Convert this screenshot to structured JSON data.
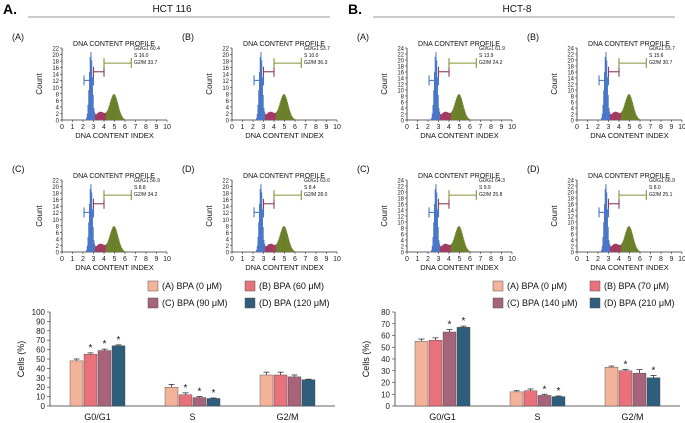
{
  "panels": [
    {
      "letter": "A.",
      "title": "HCT 116",
      "histograms": [
        {
          "sub": "(A)",
          "title": "DNA CONTENT PROFILE",
          "stats": [
            "G0/G1 60.4",
            "S 16.0",
            "G2/M 33.7"
          ]
        },
        {
          "sub": "(B)",
          "title": "DNA CONTENT PROFILE",
          "stats": [
            "G0/G1 53.7",
            "S 10.0",
            "G2/M 36.3"
          ]
        },
        {
          "sub": "(C)",
          "title": "DNA CONTENT PROFILE",
          "stats": [
            "G0/G1 56.9",
            "S 8.8",
            "G2/M 34.2"
          ]
        },
        {
          "sub": "(D)",
          "title": "DNA CONTENT PROFILE",
          "stats": [
            "G0/G1 63.6",
            "S 8.4",
            "G2/M 28.0"
          ]
        }
      ],
      "hist_ylabel": "Count",
      "hist_xlabel": "DNA CONTENT INDEX",
      "hist_yticks": [
        "0",
        "2",
        "4",
        "6",
        "8",
        "10",
        "12",
        "14",
        "16",
        "18",
        "20",
        "22"
      ],
      "hist_xticks": [
        "0",
        "1",
        "2",
        "3",
        "4",
        "5",
        "6",
        "7",
        "8",
        "9",
        "10"
      ],
      "legend": [
        "(A) BPA (0 μM)",
        "(B) BPA (60 μM)",
        "(C) BPA (90 μM)",
        "(D) BPA (120 μM)"
      ]
    },
    {
      "letter": "B.",
      "title": "HCT-8",
      "histograms": [
        {
          "sub": "(A)",
          "title": "DNA CONTENT PROFILE",
          "stats": [
            "G0/G1 61.9",
            "S 13.9",
            "G2/M 24.2"
          ]
        },
        {
          "sub": "(B)",
          "title": "DNA CONTENT PROFILE",
          "stats": [
            "G0/G1 53.7",
            "S 15.6",
            "G2/M 30.7"
          ]
        },
        {
          "sub": "(C)",
          "title": "DNA CONTENT PROFILE",
          "stats": [
            "G0/G1 64.3",
            "S 9.9",
            "G2/M 25.8"
          ]
        },
        {
          "sub": "(D)",
          "title": "DNA CONTENT PROFILE",
          "stats": [
            "G0/G1 66.9",
            "S 8.0",
            "G2/M 25.1"
          ]
        }
      ],
      "hist_ylabel": "Count",
      "hist_xlabel": "DNA CONTENT INDEX",
      "hist_yticks": [
        "0",
        "2",
        "4",
        "6",
        "8",
        "10",
        "12",
        "14",
        "16",
        "18",
        "20",
        "22",
        "24"
      ],
      "hist_xticks": [
        "0",
        "1",
        "2",
        "3",
        "4",
        "5",
        "6",
        "7",
        "8",
        "9",
        "10"
      ],
      "legend": [
        "(A) BPA (0 μM)",
        "(B) BPA (70 μM)",
        "(C) BPA (140 μM)",
        "(D) BPA (210 μM)"
      ]
    }
  ],
  "colors": {
    "series": [
      "#f3b39a",
      "#e8717b",
      "#a6637a",
      "#2f5d7c"
    ],
    "g1_peak": "#4a76c8",
    "s_phase": "#a23a62",
    "g2_peak": "#6b7f2a",
    "marker_g1": "#4a76c8",
    "marker_s": "#8c3d5a",
    "marker_g2": "#8b8f3a"
  },
  "chart_data": [
    {
      "type": "bar",
      "title": "HCT 116",
      "categories": [
        "G0/G1",
        "S",
        "G2/M"
      ],
      "ylabel": "Cells (%)",
      "xlabel": "",
      "ylim": [
        0,
        100
      ],
      "yticks": [
        0,
        10,
        20,
        30,
        40,
        50,
        60,
        70,
        80,
        90,
        100
      ],
      "series": [
        {
          "name": "(A) BPA (0 μM)",
          "values": [
            48,
            20,
            33
          ],
          "errors": [
            2,
            3,
            3
          ]
        },
        {
          "name": "(B) BPA (60 μM)",
          "values": [
            55,
            12,
            33
          ],
          "errors": [
            1.5,
            2,
            3
          ]
        },
        {
          "name": "(C) BPA (90 μM)",
          "values": [
            59,
            9,
            31
          ],
          "errors": [
            1.5,
            1,
            2
          ]
        },
        {
          "name": "(D) BPA (120 μM)",
          "values": [
            64,
            8,
            28
          ],
          "errors": [
            1,
            0.5,
            0.5
          ]
        }
      ],
      "significance": [
        [
          false,
          true,
          true,
          true
        ],
        [
          false,
          true,
          true,
          true
        ],
        [
          false,
          false,
          false,
          false
        ]
      ],
      "significance_mark": "*",
      "legend_position": "top"
    },
    {
      "type": "bar",
      "title": "HCT-8",
      "categories": [
        "G0/G1",
        "S",
        "G2/M"
      ],
      "ylabel": "Cells (%)",
      "xlabel": "",
      "ylim": [
        0,
        80
      ],
      "yticks": [
        0,
        10,
        20,
        30,
        40,
        50,
        60,
        70,
        80
      ],
      "series": [
        {
          "name": "(A) BPA (0 μM)",
          "values": [
            55,
            12,
            33
          ],
          "errors": [
            2,
            1,
            1
          ]
        },
        {
          "name": "(B) BPA (70 μM)",
          "values": [
            56,
            13,
            30
          ],
          "errors": [
            2,
            1.5,
            1
          ]
        },
        {
          "name": "(C) BPA (140 μM)",
          "values": [
            63,
            9,
            28
          ],
          "errors": [
            2,
            1,
            3
          ]
        },
        {
          "name": "(D) BPA (210 μM)",
          "values": [
            67,
            8,
            24
          ],
          "errors": [
            1,
            0.5,
            2
          ]
        }
      ],
      "significance": [
        [
          false,
          false,
          true,
          true
        ],
        [
          false,
          false,
          true,
          true
        ],
        [
          false,
          true,
          false,
          true
        ]
      ],
      "significance_mark": "*",
      "legend_position": "top"
    }
  ]
}
